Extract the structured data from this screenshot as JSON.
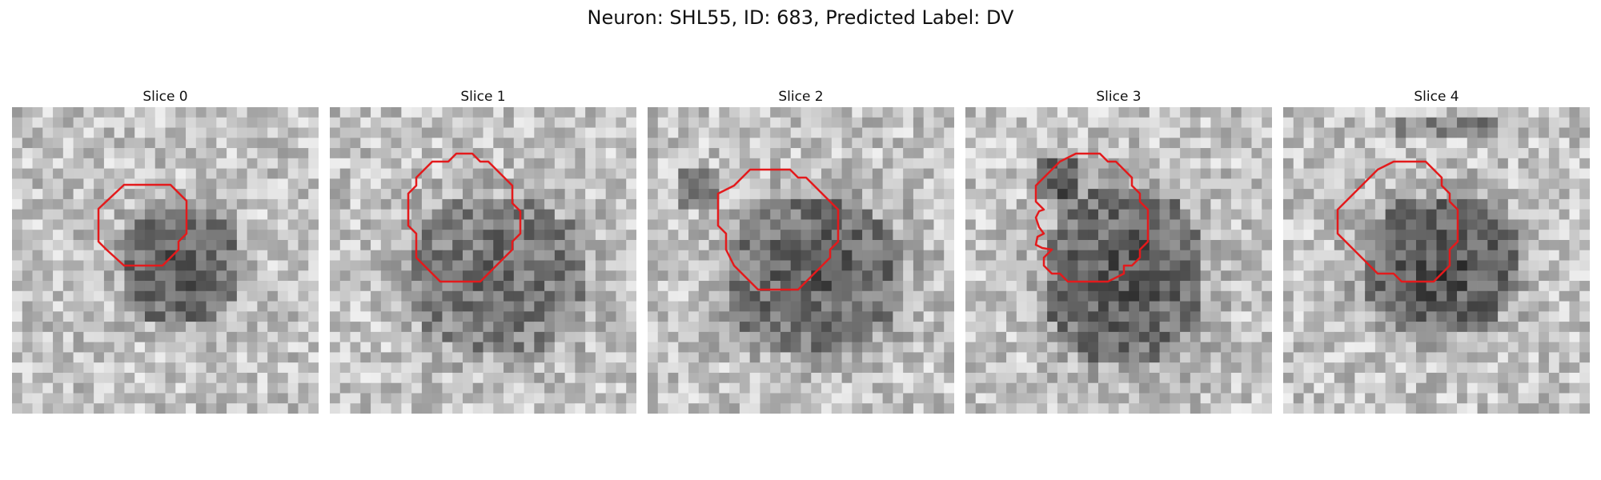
{
  "figure": {
    "title": "Neuron: SHL55, ID: 683, Predicted Label: DV"
  },
  "colors": {
    "contour": "#e31a1c",
    "background": "#ffffff"
  },
  "panels": [
    {
      "title": "Slice 0"
    },
    {
      "title": "Slice 1"
    },
    {
      "title": "Slice 2"
    },
    {
      "title": "Slice 3"
    },
    {
      "title": "Slice 4"
    }
  ]
}
